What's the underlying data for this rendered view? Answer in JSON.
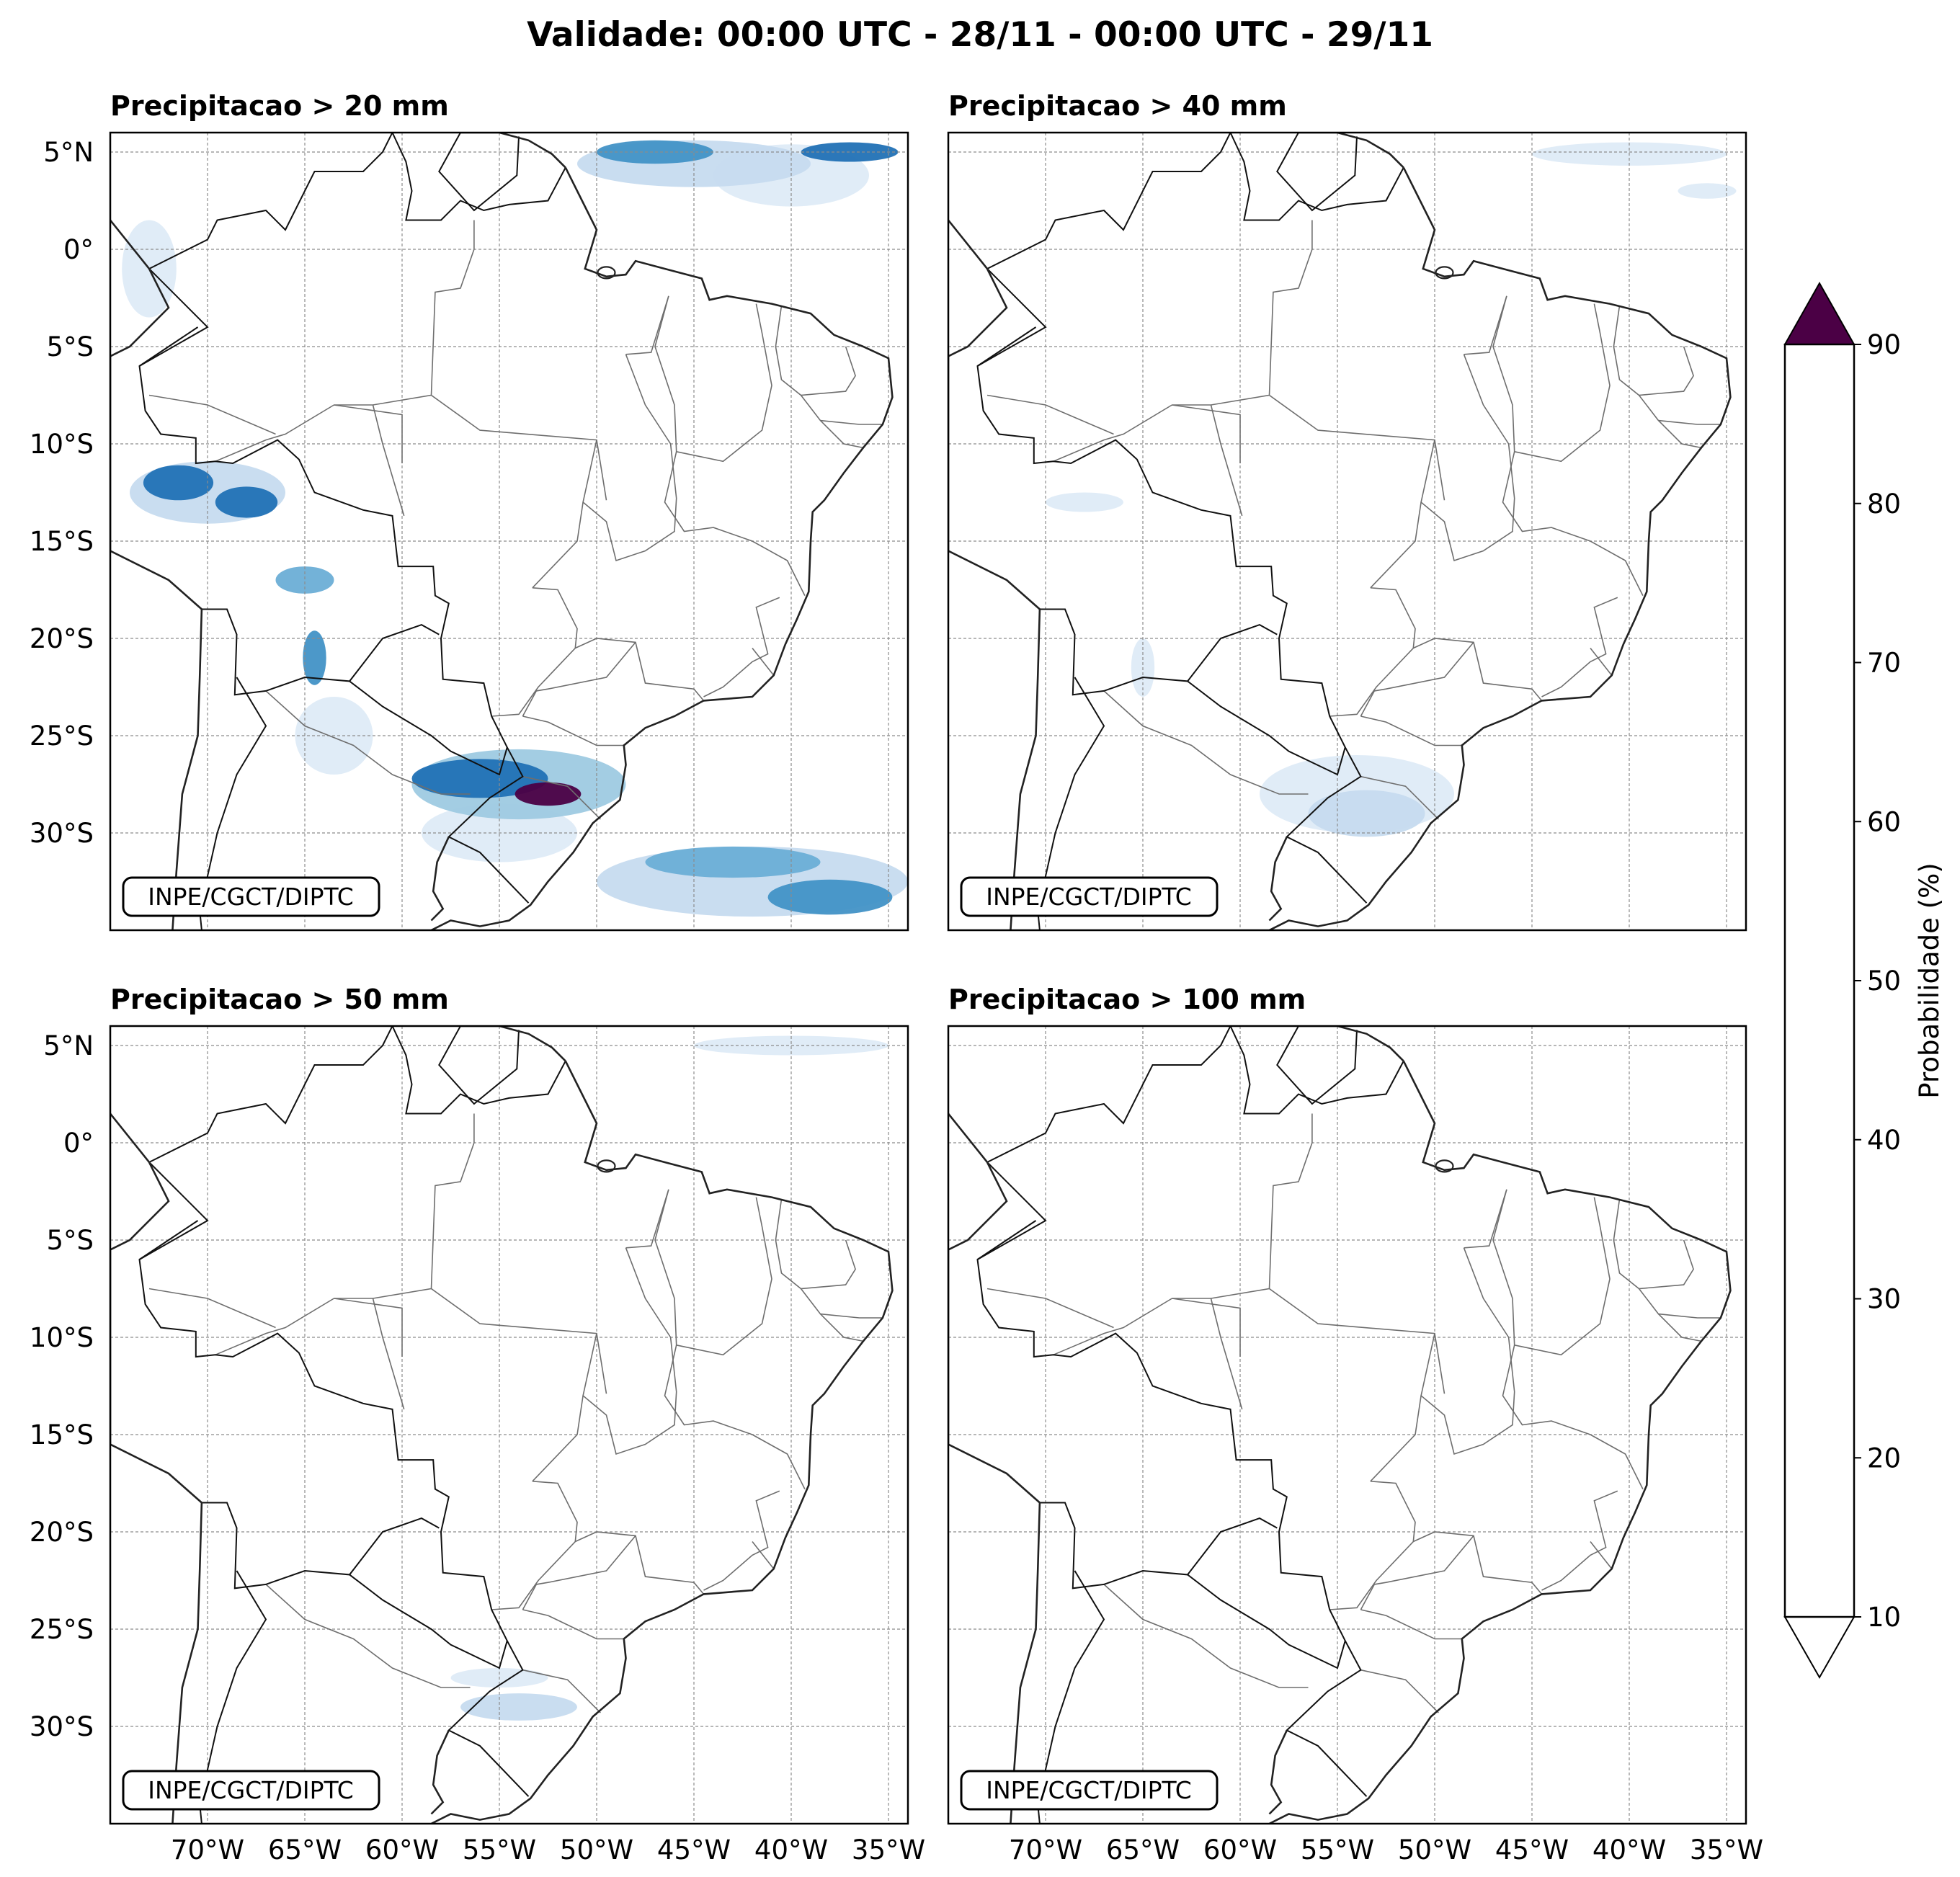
{
  "figure": {
    "title": "Validade: 00:00 UTC - 28/11 - 00:00 UTC - 29/11",
    "credit": "INPE/CGCT/DIPTC",
    "lat_ticks": [
      "5°N",
      "0°",
      "5°S",
      "10°S",
      "15°S",
      "20°S",
      "25°S",
      "30°S"
    ],
    "lon_ticks": [
      "70°W",
      "65°W",
      "60°W",
      "55°W",
      "50°W",
      "45°W",
      "40°W",
      "35°W"
    ],
    "extent": {
      "lon": [
        -75,
        -34
      ],
      "lat": [
        -35,
        6
      ]
    }
  },
  "panels": [
    {
      "title": "Precipitacao > 20 mm",
      "threshold_mm": 20
    },
    {
      "title": "Precipitacao > 40 mm",
      "threshold_mm": 40
    },
    {
      "title": "Precipitacao > 50 mm",
      "threshold_mm": 50
    },
    {
      "title": "Precipitacao > 100 mm",
      "threshold_mm": 100
    }
  ],
  "colorbar": {
    "label": "Probabilidade (%)",
    "levels": [
      "10",
      "20",
      "30",
      "40",
      "50",
      "60",
      "70",
      "80",
      "90"
    ],
    "colors": [
      "#deebf7",
      "#c6dbef",
      "#9ecae1",
      "#6baed6",
      "#4292c6",
      "#2171b5",
      "#08519c",
      "#08306b"
    ],
    "over_color": "#4b0045",
    "under_color": "#ffffff"
  },
  "precip_areas": [
    [
      {
        "lon": -47,
        "lat": 5,
        "rx": 3,
        "ry": 0.6,
        "level": 4
      },
      {
        "lon": -37,
        "lat": 5,
        "rx": 2.5,
        "ry": 0.5,
        "level": 5
      },
      {
        "lon": -45,
        "lat": 4.4,
        "rx": 6,
        "ry": 1.2,
        "level": 1
      },
      {
        "lon": -40,
        "lat": 3.8,
        "rx": 4,
        "ry": 1.6,
        "level": 0
      },
      {
        "lon": -73,
        "lat": -1,
        "rx": 1.4,
        "ry": 2.5,
        "level": 0
      },
      {
        "lon": -71.5,
        "lat": -12,
        "rx": 1.8,
        "ry": 0.9,
        "level": 5
      },
      {
        "lon": -68,
        "lat": -13,
        "rx": 1.6,
        "ry": 0.8,
        "level": 5
      },
      {
        "lon": -70,
        "lat": -12.5,
        "rx": 4,
        "ry": 1.6,
        "level": 1
      },
      {
        "lon": -65,
        "lat": -17,
        "rx": 1.5,
        "ry": 0.7,
        "level": 3
      },
      {
        "lon": -64.5,
        "lat": -21,
        "rx": 0.6,
        "ry": 1.4,
        "level": 4
      },
      {
        "lon": -63.5,
        "lat": -25,
        "rx": 2,
        "ry": 2,
        "level": 0
      },
      {
        "lon": -54,
        "lat": -27.5,
        "rx": 5.5,
        "ry": 1.8,
        "level": 2
      },
      {
        "lon": -56,
        "lat": -27.2,
        "rx": 3.5,
        "ry": 1.0,
        "level": 5
      },
      {
        "lon": -52.5,
        "lat": -28,
        "rx": 1.7,
        "ry": 0.6,
        "level": 8
      },
      {
        "lon": -55,
        "lat": -30,
        "rx": 4,
        "ry": 1.5,
        "level": 0
      },
      {
        "lon": -43,
        "lat": -31.5,
        "rx": 4.5,
        "ry": 0.8,
        "level": 3
      },
      {
        "lon": -38,
        "lat": -33.3,
        "rx": 3.2,
        "ry": 0.9,
        "level": 4
      },
      {
        "lon": -42,
        "lat": -32.5,
        "rx": 8,
        "ry": 1.8,
        "level": 1
      }
    ],
    [
      {
        "lon": -40,
        "lat": 4.9,
        "rx": 5,
        "ry": 0.6,
        "level": 0
      },
      {
        "lon": -36,
        "lat": 3,
        "rx": 1.5,
        "ry": 0.4,
        "level": 0
      },
      {
        "lon": -68,
        "lat": -13,
        "rx": 2,
        "ry": 0.5,
        "level": 0
      },
      {
        "lon": -65,
        "lat": -21.5,
        "rx": 0.6,
        "ry": 1.5,
        "level": 0
      },
      {
        "lon": -53.5,
        "lat": -29,
        "rx": 3,
        "ry": 1.2,
        "level": 1
      },
      {
        "lon": -54,
        "lat": -28,
        "rx": 5,
        "ry": 2,
        "level": 0
      }
    ],
    [
      {
        "lon": -40,
        "lat": 5,
        "rx": 5,
        "ry": 0.5,
        "level": 0
      },
      {
        "lon": -54,
        "lat": -29,
        "rx": 3,
        "ry": 0.7,
        "level": 1
      },
      {
        "lon": -55,
        "lat": -27.5,
        "rx": 2.5,
        "ry": 0.5,
        "level": 0
      }
    ],
    []
  ]
}
